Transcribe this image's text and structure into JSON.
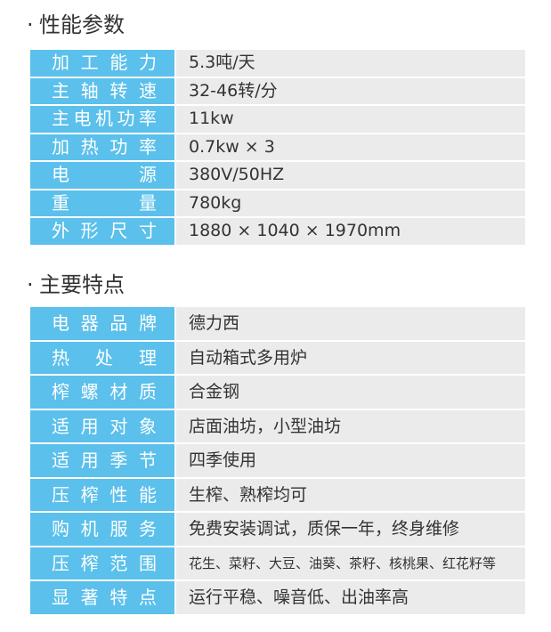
{
  "sections": [
    {
      "title": "性能参数",
      "rows": [
        {
          "label": "加工能力",
          "value": "5.3吨/天"
        },
        {
          "label": "主轴转速",
          "value": "32-46转/分"
        },
        {
          "label": "主电机功率",
          "value": "11kw"
        },
        {
          "label": "加热功率",
          "value": "0.7kw × 3"
        },
        {
          "label": "电源",
          "value": "380V/50HZ"
        },
        {
          "label": "重量",
          "value": "780kg"
        },
        {
          "label": "外形尺寸",
          "value": "1880 × 1040 × 1970mm"
        }
      ]
    },
    {
      "title": "主要特点",
      "rows": [
        {
          "label": "电器品牌",
          "value": "德力西"
        },
        {
          "label": "热处理",
          "value": "自动箱式多用炉"
        },
        {
          "label": "榨螺材质",
          "value": "合金钢"
        },
        {
          "label": "适用对象",
          "value": "店面油坊，小型油坊"
        },
        {
          "label": "适用季节",
          "value": "四季使用"
        },
        {
          "label": "压榨性能",
          "value": "生榨、熟榨均可"
        },
        {
          "label": "购机服务",
          "value": "免费安装调试，质保一年，终身维修"
        },
        {
          "label": "压榨范围",
          "value": "花生、菜籽、大豆、油葵、茶籽、核桃果、红花籽等"
        },
        {
          "label": "显著特点",
          "value": "运行平稳、噪音低、出油率高"
        }
      ]
    }
  ],
  "bullet": "·",
  "colors": {
    "label_bg": "#5bc0eb",
    "value_bg": "#ebebeb"
  }
}
